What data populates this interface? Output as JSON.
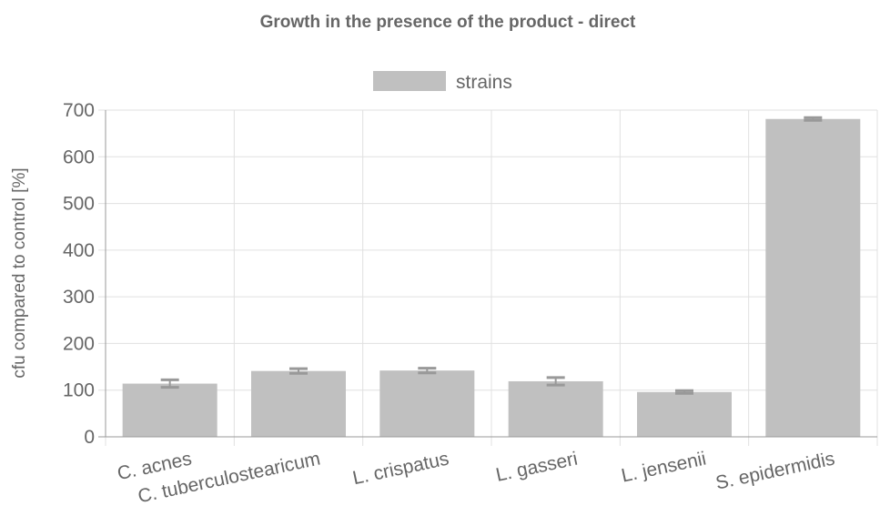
{
  "chart_data": {
    "type": "bar",
    "title": "Growth in the presence of the product - direct",
    "ylabel": "cfu compared to control [%]",
    "xlabel": "",
    "categories": [
      "C. acnes",
      "C. tuberculostearicum",
      "L. crispatus",
      "L. gasseri",
      "L. jensenii",
      "S. epidermidis"
    ],
    "series": [
      {
        "name": "strains",
        "color": "#c0c0c0",
        "values": [
          114,
          141,
          142,
          119,
          96,
          681
        ],
        "errors": [
          8,
          5,
          5,
          8,
          3,
          3
        ]
      }
    ],
    "ylim": [
      0,
      700
    ],
    "yticks": [
      "0",
      "100",
      "200",
      "300",
      "400",
      "500",
      "600",
      "700"
    ],
    "ytick_values": [
      0,
      100,
      200,
      300,
      400,
      500,
      600,
      700
    ],
    "grid": true,
    "legend_position": "top-center",
    "error_bar_color": "#999999"
  }
}
